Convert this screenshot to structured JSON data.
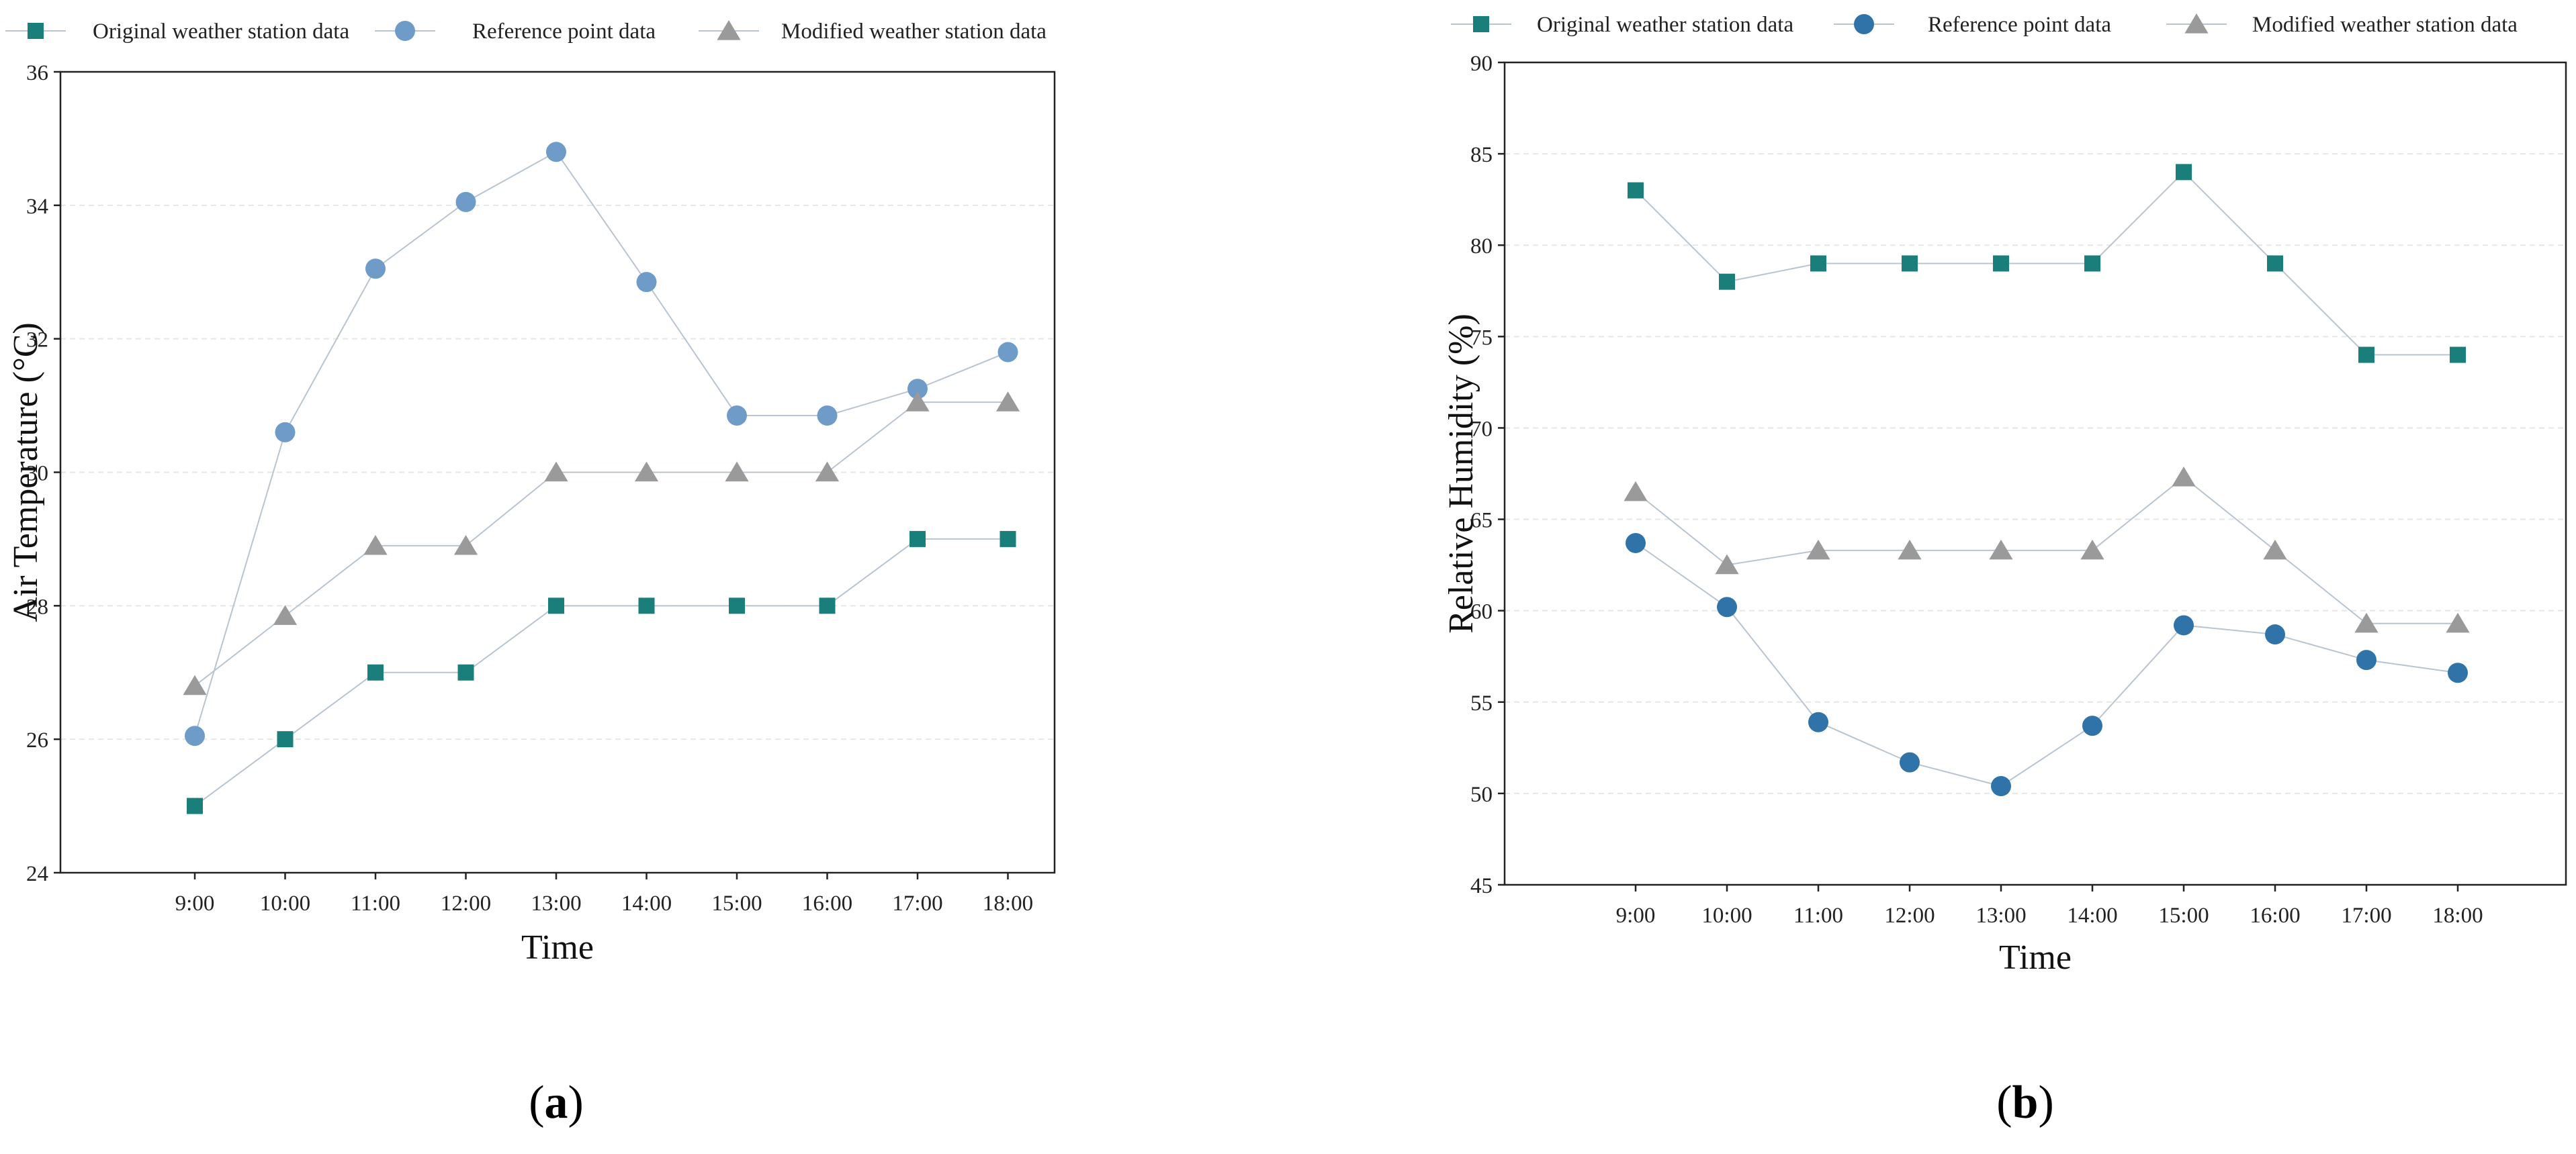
{
  "chart_data": [
    {
      "type": "line",
      "panel_label": "a",
      "title": "",
      "xlabel": "Time",
      "ylabel": "Air Temperature (°C)",
      "categories": [
        "9:00",
        "10:00",
        "11:00",
        "12:00",
        "13:00",
        "14:00",
        "15:00",
        "16:00",
        "17:00",
        "18:00"
      ],
      "ylim": [
        24,
        36
      ],
      "yticks": [
        "24",
        "26",
        "28",
        "30",
        "32",
        "34",
        "36"
      ],
      "grid": "horizontal dashed",
      "legend_position": "top",
      "series": [
        {
          "name": "Original weather station data",
          "marker": "square",
          "color": "#1a7f7a",
          "values": [
            25,
            26,
            27,
            27,
            28,
            28,
            28,
            28,
            29,
            29
          ]
        },
        {
          "name": "Reference point data",
          "marker": "circle",
          "color": "#6f9bc8",
          "values": [
            26.05,
            30.6,
            33.05,
            34.05,
            34.8,
            32.85,
            30.85,
            30.85,
            31.25,
            31.8
          ]
        },
        {
          "name": "Modified weather station data",
          "marker": "triangle",
          "color": "#9a9a9a",
          "values": [
            26.8,
            27.85,
            28.9,
            28.9,
            30,
            30,
            30,
            30,
            31.05,
            31.05
          ]
        }
      ]
    },
    {
      "type": "line",
      "panel_label": "b",
      "title": "",
      "xlabel": "Time",
      "ylabel": "Relative Humidity (%)",
      "categories": [
        "9:00",
        "10:00",
        "11:00",
        "12:00",
        "13:00",
        "14:00",
        "15:00",
        "16:00",
        "17:00",
        "18:00"
      ],
      "ylim": [
        45,
        90
      ],
      "yticks": [
        "45",
        "50",
        "55",
        "60",
        "65",
        "70",
        "75",
        "80",
        "85",
        "90"
      ],
      "grid": "horizontal dashed",
      "legend_position": "top",
      "series": [
        {
          "name": "Original weather station data",
          "marker": "square",
          "color": "#1a7f7a",
          "values": [
            83,
            78,
            79,
            79,
            79,
            79,
            84,
            79,
            74,
            74
          ]
        },
        {
          "name": "Reference point data",
          "marker": "circle",
          "color": "#2f73a8",
          "values": [
            63.7,
            60.2,
            53.9,
            51.7,
            50.4,
            53.7,
            59.2,
            58.7,
            57.3,
            56.6
          ]
        },
        {
          "name": "Modified weather station data",
          "marker": "triangle",
          "color": "#9a9a9a",
          "values": [
            66.5,
            62.5,
            63.3,
            63.3,
            63.3,
            63.3,
            67.3,
            63.3,
            59.3,
            59.3
          ]
        }
      ]
    }
  ]
}
